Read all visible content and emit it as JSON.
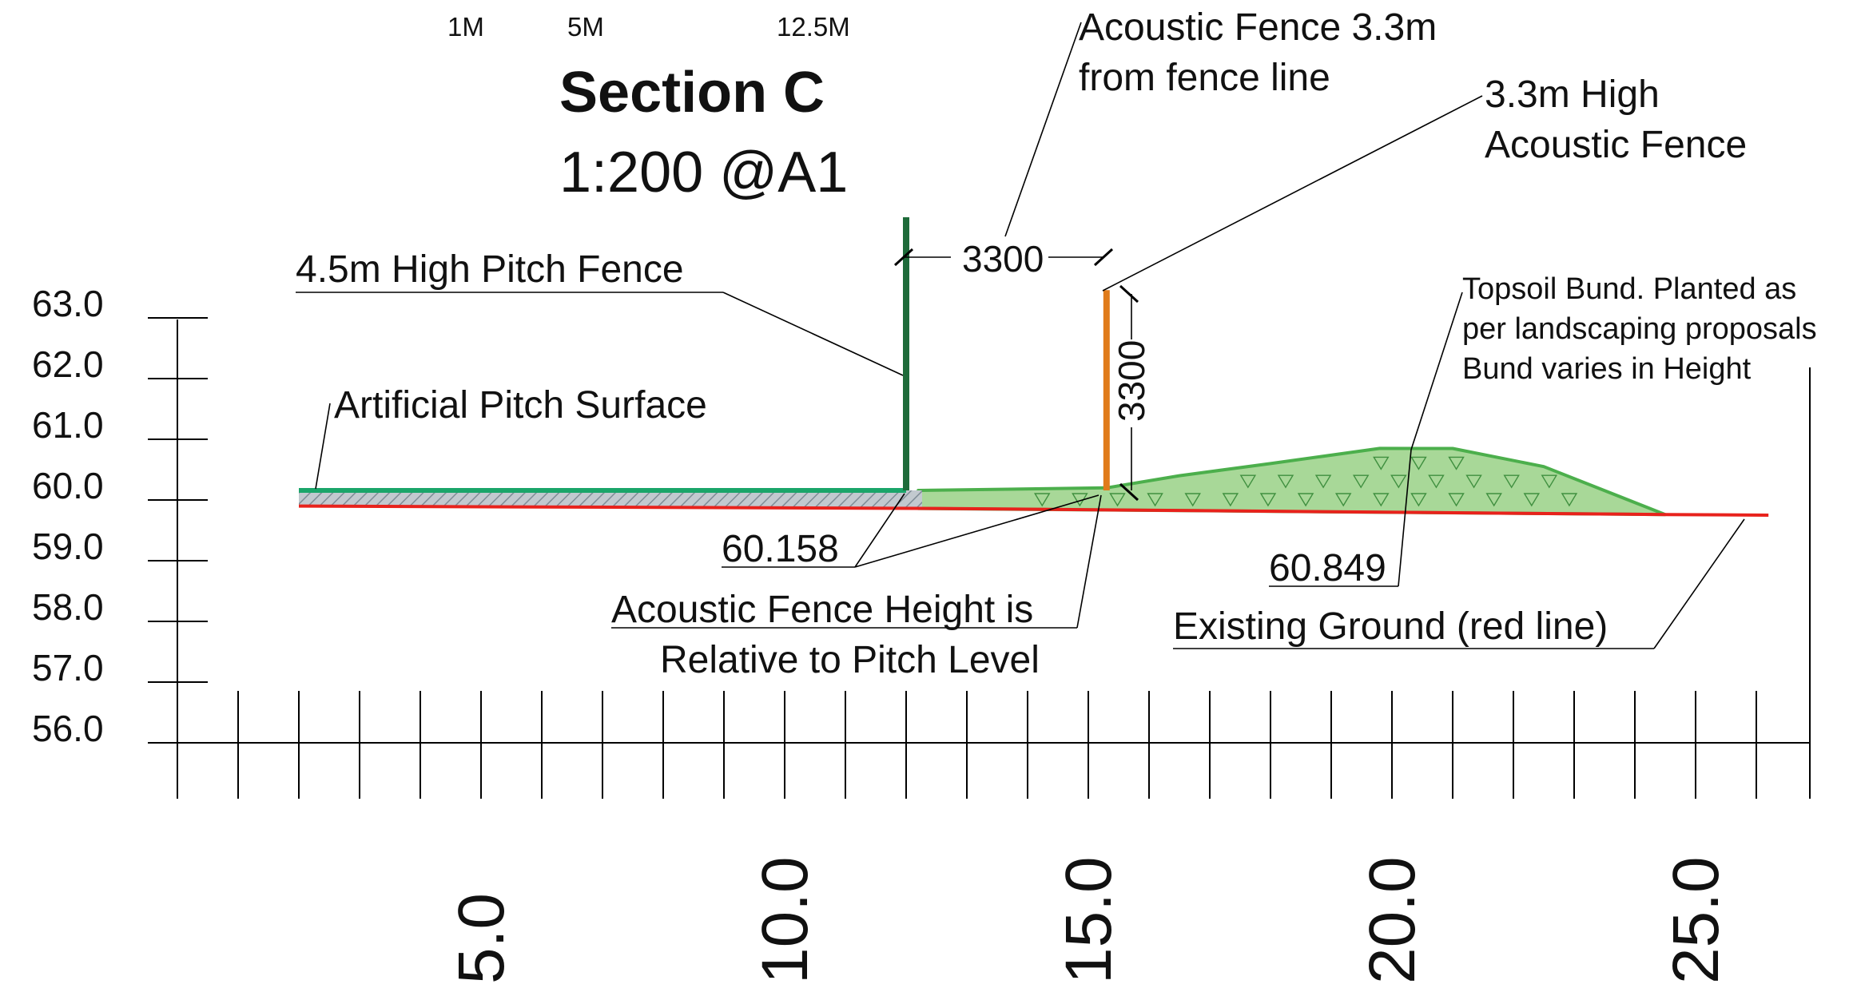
{
  "header": {
    "scale_bar": [
      "1M",
      "5M",
      "12.5M"
    ],
    "title": "Section C",
    "subtitle": "1:200 @A1"
  },
  "chart_data": {
    "type": "section-elevation",
    "x_ticks": [
      "5.0",
      "10.0",
      "15.0",
      "20.0",
      "25.0"
    ],
    "y_ticks": [
      "63.0",
      "62.0",
      "61.0",
      "60.0",
      "59.0",
      "58.0",
      "57.0",
      "56.0"
    ],
    "x_range": [
      0,
      26
    ],
    "y_range": [
      56.0,
      63.0
    ],
    "existing_ground": {
      "x": [
        2.0,
        12.5,
        24.5,
        26.2
      ],
      "y": [
        59.9,
        59.86,
        59.76,
        59.75
      ]
    },
    "pitch_surface": {
      "x": [
        2.0,
        12.0
      ],
      "y": [
        60.158,
        60.158
      ]
    },
    "bund_top": {
      "x": [
        12.2,
        15.3,
        16.5,
        18.0,
        19.8,
        21.0,
        22.5,
        24.5
      ],
      "y": [
        60.158,
        60.2,
        60.4,
        60.6,
        60.85,
        60.849,
        60.55,
        59.76
      ]
    },
    "pitch_fence": {
      "x": 12.0,
      "base": 60.158,
      "height_m": 4.5
    },
    "acoustic_fence": {
      "x": 15.3,
      "base": 60.158,
      "height_m": 3.3
    },
    "colors": {
      "existing_ground": "#e8221c",
      "pitch_fence": "#1e6b3a",
      "acoustic_fence": "#e07b1a",
      "bund_fill": "#a8d898",
      "bund_edge": "#4caf4c",
      "pitch_surface": "#1aa56a",
      "pitch_hatch": "#8c9aa6"
    }
  },
  "annotations": {
    "pitch_fence": "4.5m High Pitch Fence",
    "artificial_surface": "Artificial Pitch Surface",
    "acoustic_offset_line1": "Acoustic Fence 3.3m",
    "acoustic_offset_line2": "from fence line",
    "acoustic_high_line1": "3.3m High",
    "acoustic_high_line2": "Acoustic Fence",
    "dim_horizontal": "3300",
    "dim_vertical": "3300",
    "level_pitch": "60.158",
    "level_bund": "60.849",
    "relative_line1": "Acoustic Fence Height is",
    "relative_line2": "Relative to Pitch Level",
    "bund_line1": "Topsoil Bund. Planted as",
    "bund_line2": "per landscaping proposals",
    "bund_line3": "Bund varies in Height",
    "existing_ground": "Existing Ground (red line)"
  }
}
